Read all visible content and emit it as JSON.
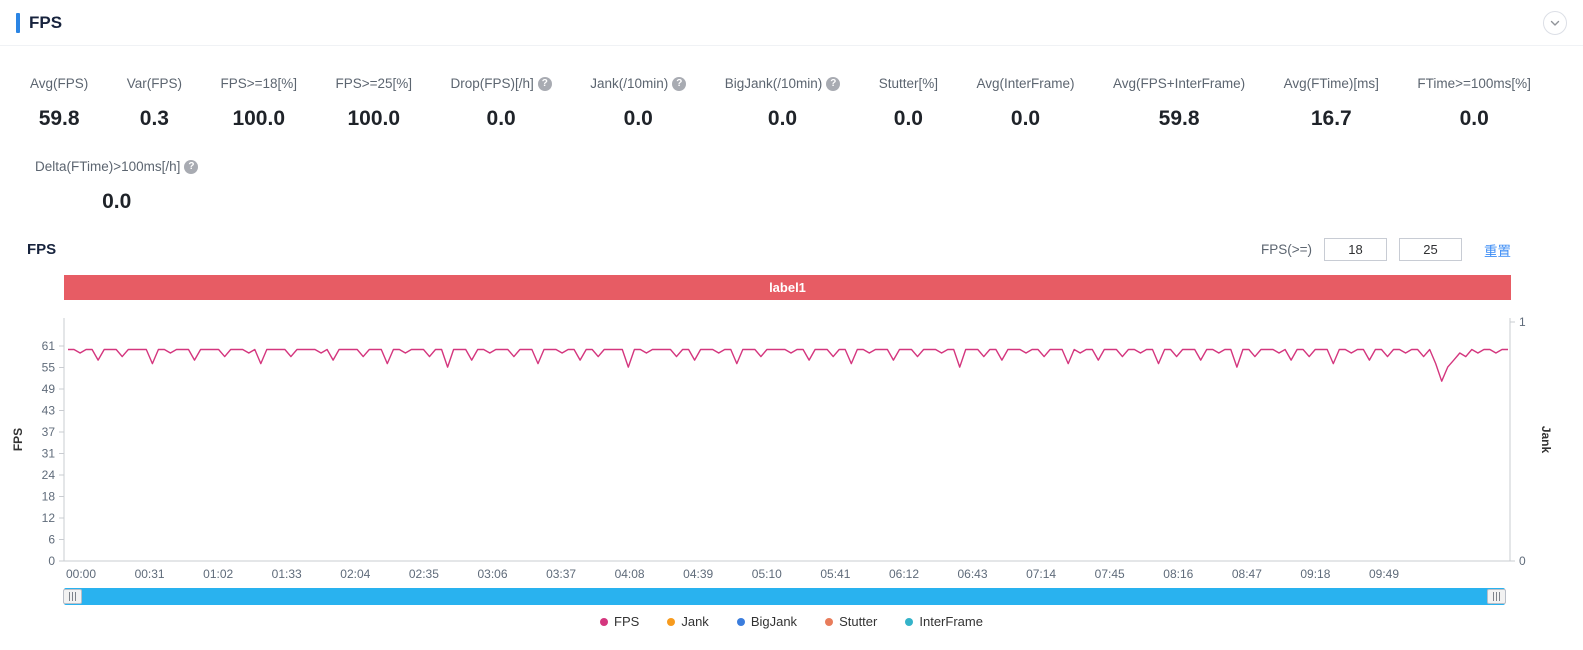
{
  "header": {
    "title": "FPS"
  },
  "stats": {
    "help_glyph": "?",
    "items": [
      {
        "label": "Avg(FPS)",
        "value": "59.8"
      },
      {
        "label": "Var(FPS)",
        "value": "0.3"
      },
      {
        "label": "FPS>=18[%]",
        "value": "100.0"
      },
      {
        "label": "FPS>=25[%]",
        "value": "100.0"
      },
      {
        "label": "Drop(FPS)[/h]",
        "value": "0.0",
        "help": true
      },
      {
        "label": "Jank(/10min)",
        "value": "0.0",
        "help": true
      },
      {
        "label": "BigJank(/10min)",
        "value": "0.0",
        "help": true
      },
      {
        "label": "Stutter[%]",
        "value": "0.0"
      },
      {
        "label": "Avg(InterFrame)",
        "value": "0.0"
      },
      {
        "label": "Avg(FPS+InterFrame)",
        "value": "59.8"
      },
      {
        "label": "Avg(FTime)[ms]",
        "value": "16.7"
      },
      {
        "label": "FTime>=100ms[%]",
        "value": "0.0"
      }
    ],
    "extra": {
      "label": "Delta(FTime)>100ms[/h]",
      "value": "0.0",
      "help": true
    }
  },
  "chart": {
    "title": "FPS",
    "filter_label": "FPS(>=)",
    "threshold_low": "18",
    "threshold_high": "25",
    "reset_label": "重置",
    "banner_label": "label1"
  },
  "chart_data": {
    "type": "line",
    "title": "FPS",
    "ylabel_left": "FPS",
    "ylabel_right": "Jank",
    "ylim": [
      0,
      61
    ],
    "y2lim": [
      0,
      1
    ],
    "grid": false,
    "legend_position": "bottom",
    "y_ticks": [
      "61",
      "55",
      "49",
      "43",
      "37",
      "31",
      "24",
      "18",
      "12",
      "6",
      "0"
    ],
    "y2_ticks": [
      "1",
      "0"
    ],
    "x_labels": [
      "00:00",
      "00:31",
      "01:02",
      "01:33",
      "02:04",
      "02:35",
      "03:06",
      "03:37",
      "04:08",
      "04:39",
      "05:10",
      "05:41",
      "06:12",
      "06:43",
      "07:14",
      "07:45",
      "08:16",
      "08:47",
      "09:18",
      "09:49"
    ],
    "line_color": "#d4367e",
    "series": [
      {
        "name": "FPS",
        "values": [
          60,
          60,
          59,
          60,
          60,
          57,
          60,
          60,
          60,
          58,
          60,
          60,
          60,
          60,
          56,
          60,
          60,
          59,
          60,
          60,
          60,
          57,
          60,
          60,
          60,
          60,
          58,
          60,
          60,
          60,
          59,
          60,
          56,
          60,
          60,
          60,
          60,
          58,
          60,
          60,
          60,
          60,
          59,
          60,
          57,
          60,
          60,
          60,
          60,
          58,
          60,
          60,
          60,
          56,
          60,
          60,
          59,
          60,
          60,
          60,
          58,
          60,
          60,
          55,
          60,
          60,
          60,
          57,
          60,
          60,
          59,
          60,
          60,
          60,
          58,
          60,
          60,
          60,
          56,
          60,
          60,
          60,
          59,
          60,
          60,
          57,
          60,
          60,
          58,
          60,
          60,
          60,
          60,
          55,
          60,
          60,
          59,
          60,
          60,
          60,
          60,
          58,
          60,
          60,
          57,
          60,
          60,
          60,
          59,
          60,
          60,
          56,
          60,
          60,
          60,
          58,
          60,
          60,
          60,
          60,
          59,
          60,
          60,
          57,
          60,
          60,
          60,
          58,
          60,
          60,
          56,
          60,
          60,
          59,
          60,
          60,
          60,
          57,
          60,
          60,
          60,
          58,
          60,
          60,
          60,
          59,
          60,
          60,
          55,
          60,
          60,
          60,
          58,
          60,
          60,
          57,
          60,
          60,
          60,
          59,
          60,
          60,
          58,
          60,
          60,
          60,
          56,
          60,
          59,
          60,
          60,
          57,
          60,
          60,
          60,
          58,
          60,
          60,
          59,
          60,
          60,
          56,
          60,
          60,
          58,
          60,
          60,
          60,
          57,
          60,
          60,
          59,
          60,
          60,
          55,
          60,
          60,
          58,
          60,
          60,
          60,
          59,
          60,
          57,
          60,
          60,
          58,
          60,
          60,
          60,
          56,
          60,
          60,
          59,
          60,
          60,
          57,
          60,
          60,
          58,
          60,
          60,
          59,
          60,
          60,
          58,
          60,
          56,
          51,
          55,
          57,
          59,
          58,
          60,
          59,
          60,
          60,
          59,
          60,
          60
        ]
      }
    ],
    "legend": [
      {
        "label": "FPS",
        "color": "#d4367e"
      },
      {
        "label": "Jank",
        "color": "#f79b1e"
      },
      {
        "label": "BigJank",
        "color": "#3b7ddd"
      },
      {
        "label": "Stutter",
        "color": "#e87c5b"
      },
      {
        "label": "InterFrame",
        "color": "#34b3c9"
      }
    ]
  }
}
